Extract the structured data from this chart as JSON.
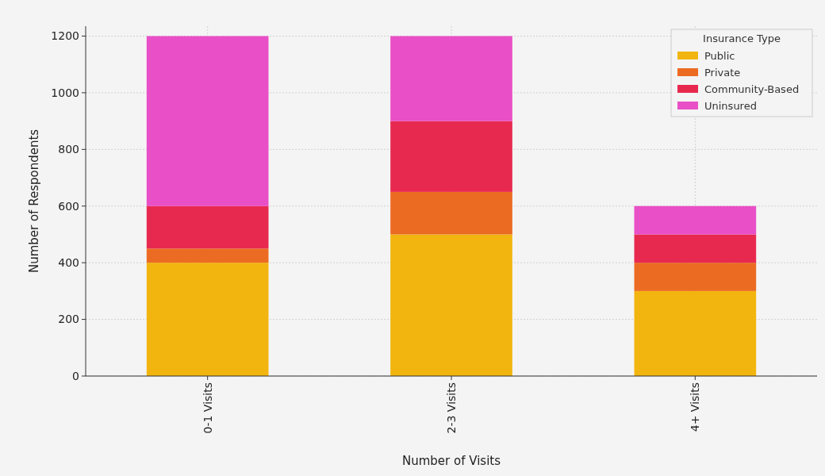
{
  "chart_data": {
    "type": "bar",
    "stacked": true,
    "xlabel": "Number of Visits",
    "ylabel": "Number of Respondents",
    "legend_title": "Insurance Type",
    "legend": "top right",
    "grid": true,
    "categories": [
      "0-1 Visits",
      "2-3 Visits",
      "4+ Visits"
    ],
    "ylim": [
      0,
      1235
    ],
    "yticks": [
      0,
      200,
      400,
      600,
      800,
      1000,
      1200
    ],
    "series": [
      {
        "name": "Public",
        "color": "#f2b50f",
        "values": [
          400,
          500,
          300
        ]
      },
      {
        "name": "Private",
        "color": "#ec6b22",
        "values": [
          50,
          150,
          100
        ]
      },
      {
        "name": "Community-Based",
        "color": "#e8294f",
        "values": [
          150,
          250,
          100
        ]
      },
      {
        "name": "Uninsured",
        "color": "#e94fc6",
        "values": [
          600,
          300,
          100
        ]
      }
    ]
  }
}
